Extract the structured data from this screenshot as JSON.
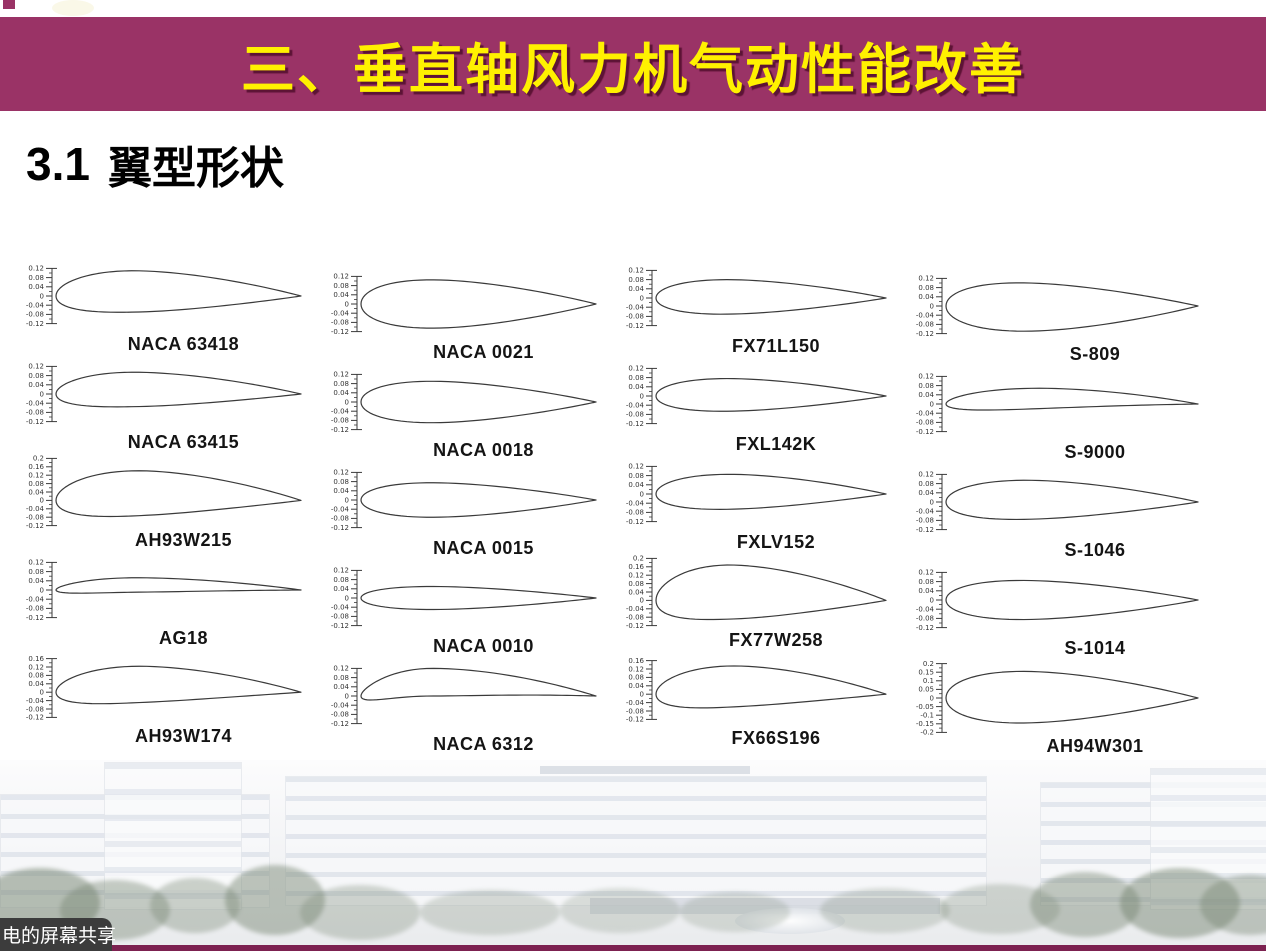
{
  "colors": {
    "banner_bg": "#9A3366",
    "banner_text": "#FFF100",
    "banner_shadow": "#5C1335",
    "heading": "#000000",
    "airfoil_stroke": "#3A3A3A",
    "tick_text": "#333333",
    "label_text": "#141414",
    "overlay_bg": "#3C3C3C",
    "overlay_text": "#FFFFFF",
    "bottom_bar": "#7C2150"
  },
  "banner": {
    "title": "三、垂直轴风力机气动性能改善"
  },
  "heading": {
    "number": "3.1",
    "text": "翼型形状"
  },
  "share_overlay": {
    "label": "电的屏幕共享"
  },
  "footer_photo": {
    "alt": "faded university campus building photo with trees and fountain"
  },
  "airfoil_grid": {
    "columns": 4,
    "rows": 5,
    "airfoils": [
      {
        "name": "NACA 63418",
        "ticks": [
          "0.12",
          "0.08",
          "0.04",
          "0",
          "-0.04",
          "-0.08",
          "-0.12"
        ],
        "shape": {
          "t": 0.18,
          "m": 0.02,
          "p": 0.35
        }
      },
      {
        "name": "NACA 0021",
        "ticks": [
          "0.12",
          "0.08",
          "0.04",
          "0",
          "-0.04",
          "-0.08",
          "-0.12"
        ],
        "shape": {
          "t": 0.21,
          "m": 0.0,
          "p": 0.3
        }
      },
      {
        "name": "FX71L150",
        "ticks": [
          "0.12",
          "0.08",
          "0.04",
          "0",
          "-0.04",
          "-0.08",
          "-0.12"
        ],
        "shape": {
          "t": 0.15,
          "m": 0.005,
          "p": 0.4
        }
      },
      {
        "name": "S-809",
        "ticks": [
          "0.12",
          "0.08",
          "0.04",
          "0",
          "-0.04",
          "-0.08",
          "-0.12"
        ],
        "shape": {
          "t": 0.21,
          "m": -0.005,
          "p": 0.45
        }
      },
      {
        "name": "NACA 63415",
        "ticks": [
          "0.12",
          "0.08",
          "0.04",
          "0",
          "-0.04",
          "-0.08",
          "-0.12"
        ],
        "shape": {
          "t": 0.15,
          "m": 0.02,
          "p": 0.35
        }
      },
      {
        "name": "NACA 0018",
        "ticks": [
          "0.12",
          "0.08",
          "0.04",
          "0",
          "-0.04",
          "-0.08",
          "-0.12"
        ],
        "shape": {
          "t": 0.18,
          "m": 0.0,
          "p": 0.3
        }
      },
      {
        "name": "FXL142K",
        "ticks": [
          "0.12",
          "0.08",
          "0.04",
          "0",
          "-0.04",
          "-0.08",
          "-0.12"
        ],
        "shape": {
          "t": 0.142,
          "m": 0.005,
          "p": 0.4
        }
      },
      {
        "name": "S-9000",
        "ticks": [
          "0.12",
          "0.08",
          "0.04",
          "0",
          "-0.04",
          "-0.08",
          "-0.12"
        ],
        "shape": {
          "t": 0.09,
          "m": 0.025,
          "p": 0.45
        }
      },
      {
        "name": "AH93W215",
        "ticks": [
          "0.2",
          "0.16",
          "0.12",
          "0.08",
          "0.04",
          "0",
          "-0.04",
          "-0.08",
          "-0.12"
        ],
        "shape": {
          "t": 0.215,
          "m": 0.035,
          "p": 0.4
        }
      },
      {
        "name": "NACA 0015",
        "ticks": [
          "0.12",
          "0.08",
          "0.04",
          "0",
          "-0.04",
          "-0.08",
          "-0.12"
        ],
        "shape": {
          "t": 0.15,
          "m": 0.0,
          "p": 0.3
        }
      },
      {
        "name": "FXLV152",
        "ticks": [
          "0.12",
          "0.08",
          "0.04",
          "0",
          "-0.04",
          "-0.08",
          "-0.12"
        ],
        "shape": {
          "t": 0.152,
          "m": 0.01,
          "p": 0.4
        }
      },
      {
        "name": "S-1046",
        "ticks": [
          "0.12",
          "0.08",
          "0.04",
          "0",
          "-0.04",
          "-0.08",
          "-0.12"
        ],
        "shape": {
          "t": 0.17,
          "m": 0.01,
          "p": 0.4
        }
      },
      {
        "name": "AG18",
        "ticks": [
          "0.12",
          "0.08",
          "0.04",
          "0",
          "-0.04",
          "-0.08",
          "-0.12"
        ],
        "shape": {
          "t": 0.063,
          "m": 0.022,
          "p": 0.35
        }
      },
      {
        "name": "NACA 0010",
        "ticks": [
          "0.12",
          "0.08",
          "0.04",
          "0",
          "-0.04",
          "-0.08",
          "-0.12"
        ],
        "shape": {
          "t": 0.1,
          "m": 0.0,
          "p": 0.3
        }
      },
      {
        "name": "FX77W258",
        "ticks": [
          "0.2",
          "0.16",
          "0.12",
          "0.08",
          "0.04",
          "0",
          "-0.04",
          "-0.08",
          "-0.12"
        ],
        "shape": {
          "t": 0.258,
          "m": 0.04,
          "p": 0.35
        }
      },
      {
        "name": "S-1014",
        "ticks": [
          "0.12",
          "0.08",
          "0.04",
          "0",
          "-0.04",
          "-0.08",
          "-0.12"
        ],
        "shape": {
          "t": 0.17,
          "m": 0.0,
          "p": 0.4
        }
      },
      {
        "name": "AH93W174",
        "ticks": [
          "0.16",
          "0.12",
          "0.08",
          "0.04",
          "0",
          "-0.04",
          "-0.08",
          "-0.12"
        ],
        "shape": {
          "t": 0.174,
          "m": 0.038,
          "p": 0.4
        }
      },
      {
        "name": "NACA 6312",
        "ticks": [
          "0.12",
          "0.08",
          "0.04",
          "0",
          "-0.04",
          "-0.08",
          "-0.12"
        ],
        "shape": {
          "t": 0.12,
          "m": 0.06,
          "p": 0.3
        }
      },
      {
        "name": "FX66S196",
        "ticks": [
          "0.16",
          "0.12",
          "0.08",
          "0.04",
          "0",
          "-0.04",
          "-0.08",
          "-0.12"
        ],
        "shape": {
          "t": 0.196,
          "m": 0.038,
          "p": 0.4
        }
      },
      {
        "name": "AH94W301",
        "ticks": [
          "0.2",
          "0.15",
          "0.1",
          "0.05",
          "0",
          "-0.05",
          "-0.1",
          "-0.15",
          "-0.2"
        ],
        "shape": {
          "t": 0.3,
          "m": 0.005,
          "p": 0.4
        }
      }
    ]
  }
}
